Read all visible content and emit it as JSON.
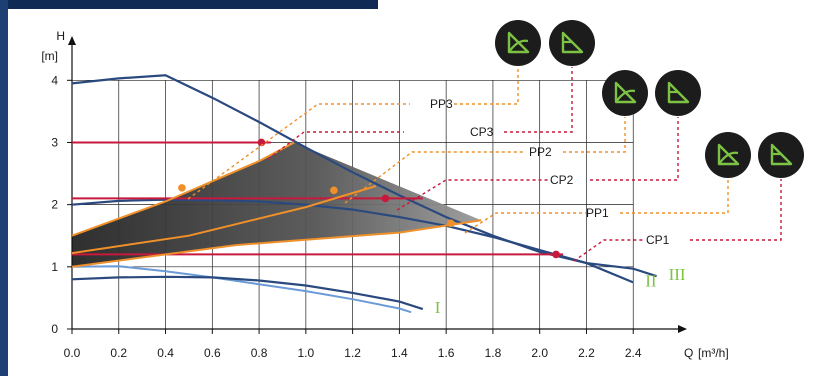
{
  "chart_data": {
    "type": "line",
    "title": "",
    "ylabel": "H",
    "yunit": "[m]",
    "xlabel": "Q",
    "xunit": "[m³/h]",
    "xlim": [
      0,
      2.6
    ],
    "ylim": [
      0,
      4.6
    ],
    "x_ticks": [
      "0.0",
      "0.2",
      "0.4",
      "0.6",
      "0.8",
      "1.0",
      "1.2",
      "1.4",
      "1.6",
      "1.8",
      "2.0",
      "2.2",
      "2.4"
    ],
    "y_ticks": [
      "0",
      "1",
      "2",
      "3",
      "4"
    ],
    "grid": true,
    "colors": {
      "curve": "#2a4a7f",
      "curve_light": "#6b9bd6",
      "proportional": "#f0902a",
      "constant": "#c8193c",
      "speed_label": "#7cc243",
      "badge": "#1c1c1c",
      "badge_icon": "#7cc243"
    },
    "speed_curves": [
      {
        "name": "III",
        "points": [
          [
            0,
            3.95
          ],
          [
            0.2,
            4.03
          ],
          [
            0.4,
            4.08
          ],
          [
            0.6,
            3.72
          ],
          [
            0.8,
            3.33
          ],
          [
            1.0,
            2.92
          ],
          [
            1.2,
            2.52
          ],
          [
            1.4,
            2.15
          ],
          [
            1.6,
            1.8
          ],
          [
            1.8,
            1.5
          ],
          [
            2.0,
            1.24
          ],
          [
            2.2,
            1.06
          ],
          [
            2.4,
            0.97
          ],
          [
            2.5,
            0.85
          ]
        ]
      },
      {
        "name": "II",
        "points": [
          [
            0,
            2.0
          ],
          [
            0.2,
            2.06
          ],
          [
            0.4,
            2.08
          ],
          [
            0.6,
            2.07
          ],
          [
            0.8,
            2.05
          ],
          [
            1.0,
            2.0
          ],
          [
            1.2,
            1.92
          ],
          [
            1.4,
            1.8
          ],
          [
            1.6,
            1.66
          ],
          [
            1.8,
            1.48
          ],
          [
            2.0,
            1.27
          ],
          [
            2.2,
            1.06
          ],
          [
            2.4,
            0.75
          ]
        ]
      },
      {
        "name": "I",
        "points": [
          [
            0,
            0.8
          ],
          [
            0.2,
            0.83
          ],
          [
            0.4,
            0.84
          ],
          [
            0.6,
            0.83
          ],
          [
            0.8,
            0.78
          ],
          [
            1.0,
            0.7
          ],
          [
            1.2,
            0.58
          ],
          [
            1.4,
            0.44
          ],
          [
            1.5,
            0.32
          ]
        ]
      }
    ],
    "light_curve": [
      [
        0,
        1.0
      ],
      [
        0.2,
        1.01
      ],
      [
        0.4,
        0.93
      ],
      [
        0.6,
        0.83
      ],
      [
        0.8,
        0.72
      ],
      [
        1.0,
        0.61
      ],
      [
        1.2,
        0.48
      ],
      [
        1.4,
        0.33
      ],
      [
        1.45,
        0.27
      ]
    ],
    "proportional_lines": [
      {
        "name": "PP1",
        "points": [
          [
            0,
            1.0
          ],
          [
            0.7,
            1.35
          ],
          [
            1.4,
            1.55
          ],
          [
            1.75,
            1.75
          ]
        ],
        "marker": [
          1.62,
          1.7
        ]
      },
      {
        "name": "PP2",
        "points": [
          [
            0,
            1.22
          ],
          [
            0.5,
            1.5
          ],
          [
            1.0,
            1.96
          ],
          [
            1.3,
            2.3
          ]
        ],
        "marker": [
          1.12,
          2.23
        ]
      },
      {
        "name": "PP3",
        "points": [
          [
            0,
            1.5
          ],
          [
            0.4,
            2.05
          ],
          [
            0.8,
            2.7
          ],
          [
            0.95,
            3.0
          ]
        ],
        "marker": [
          0.47,
          2.27
        ]
      }
    ],
    "constant_lines": [
      {
        "name": "CP1",
        "y": 1.2,
        "x_end": 2.1,
        "marker": [
          2.07,
          1.2
        ]
      },
      {
        "name": "CP2",
        "y": 2.1,
        "x_end": 1.5,
        "marker": [
          1.34,
          2.1
        ]
      },
      {
        "name": "CP3",
        "y": 3.0,
        "x_end": 0.85,
        "marker": [
          0.81,
          3.0
        ]
      }
    ],
    "callouts": [
      {
        "label": "PP3",
        "target": "PP3"
      },
      {
        "label": "CP3",
        "target": "CP3"
      },
      {
        "label": "PP2",
        "target": "PP2"
      },
      {
        "label": "CP2",
        "target": "CP2"
      },
      {
        "label": "PP1",
        "target": "PP1"
      },
      {
        "label": "CP1",
        "target": "CP1"
      }
    ],
    "badges": [
      {
        "mode": "proportional",
        "icon": "proportional-pressure-icon"
      },
      {
        "mode": "constant",
        "icon": "constant-pressure-icon"
      },
      {
        "mode": "proportional",
        "icon": "proportional-pressure-icon"
      },
      {
        "mode": "constant",
        "icon": "constant-pressure-icon"
      },
      {
        "mode": "proportional",
        "icon": "proportional-pressure-icon"
      },
      {
        "mode": "constant",
        "icon": "constant-pressure-icon"
      }
    ]
  }
}
